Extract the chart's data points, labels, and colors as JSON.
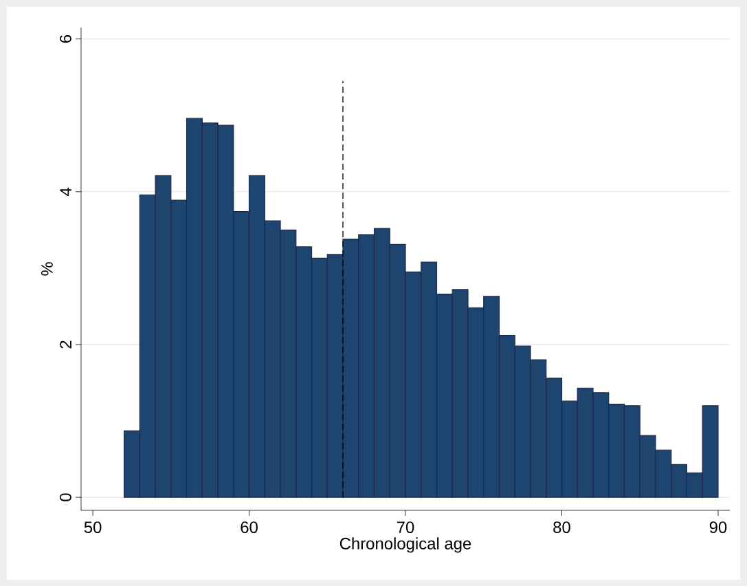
{
  "chart_data": {
    "type": "histogram",
    "xlabel": "Chronological age",
    "ylabel": "%",
    "bins": [
      52,
      53,
      54,
      55,
      56,
      57,
      58,
      59,
      60,
      61,
      62,
      63,
      64,
      65,
      66,
      67,
      68,
      69,
      70,
      71,
      72,
      73,
      74,
      75,
      76,
      77,
      78,
      79,
      80,
      81,
      82,
      83,
      84,
      85,
      86,
      87,
      88,
      89,
      90
    ],
    "values": [
      0.87,
      3.96,
      4.21,
      3.89,
      4.96,
      4.9,
      4.87,
      3.74,
      4.21,
      3.62,
      3.5,
      3.28,
      3.13,
      3.18,
      3.38,
      3.44,
      3.52,
      3.31,
      2.95,
      3.08,
      2.66,
      2.72,
      2.48,
      2.63,
      2.12,
      1.98,
      1.8,
      1.56,
      1.26,
      1.43,
      1.37,
      1.22,
      1.2,
      0.81,
      0.62,
      0.43,
      0.32,
      1.2
    ],
    "color": "#1d4570",
    "xlim": [
      49.25,
      90.75
    ],
    "ylim": [
      -0.17,
      6.15
    ],
    "xticks": [
      50,
      60,
      70,
      80,
      90
    ],
    "yticks": [
      0,
      2,
      4,
      6
    ],
    "grid": "y",
    "ref_lines": [
      {
        "axis": "x",
        "value": 66,
        "line_style": "dashed",
        "color": "#000000"
      }
    ]
  }
}
